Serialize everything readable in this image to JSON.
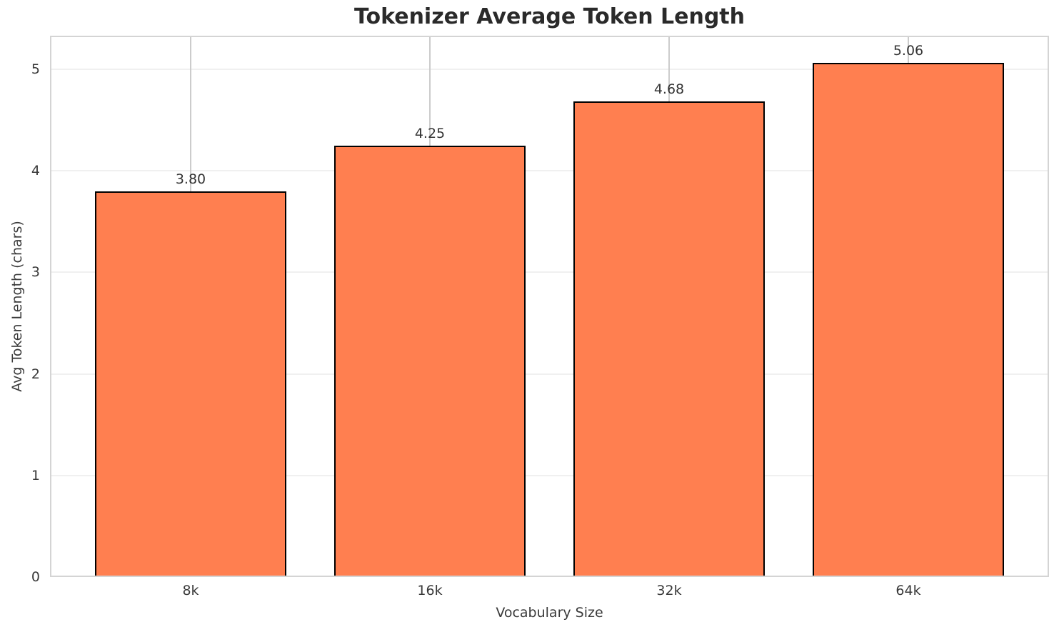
{
  "chart_data": {
    "type": "bar",
    "title": "Tokenizer Average Token Length",
    "xlabel": "Vocabulary Size",
    "ylabel": "Avg Token Length (chars)",
    "categories": [
      "8k",
      "16k",
      "32k",
      "64k"
    ],
    "values": [
      3.8,
      4.25,
      4.68,
      5.06
    ],
    "value_labels": [
      "3.80",
      "4.25",
      "4.68",
      "5.06"
    ],
    "y_ticks": [
      0,
      1,
      2,
      3,
      4,
      5
    ],
    "ylim": [
      0,
      5.33
    ],
    "grid": "both",
    "legend": "none",
    "colors": {
      "bar_fill": "#FF7F50",
      "bar_edge": "#000000",
      "h_grid": "#f0f0f0",
      "v_grid": "#cccccc",
      "spine": "#d4d4d4",
      "tick_text": "#3a3a3a",
      "title_text": "#2a2a2a"
    }
  }
}
